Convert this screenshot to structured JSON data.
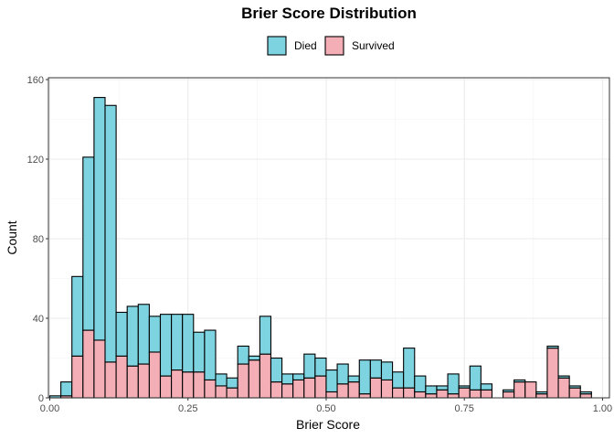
{
  "chart_data": {
    "type": "bar",
    "stacked": true,
    "title": "Brier Score Distribution",
    "xlabel": "Brier Score",
    "ylabel": "Count",
    "xlim": [
      0,
      1
    ],
    "ylim": [
      0,
      160
    ],
    "x_ticks": [
      "0.00",
      "0.25",
      "0.50",
      "0.75",
      "1.00"
    ],
    "y_ticks": [
      "0",
      "40",
      "80",
      "120",
      "160"
    ],
    "grid": true,
    "legend_position": "top",
    "bin_width": 0.02,
    "bin_centers": [
      0.01,
      0.03,
      0.05,
      0.07,
      0.09,
      0.11,
      0.13,
      0.15,
      0.17,
      0.19,
      0.21,
      0.23,
      0.25,
      0.27,
      0.29,
      0.31,
      0.33,
      0.35,
      0.37,
      0.39,
      0.41,
      0.43,
      0.45,
      0.47,
      0.49,
      0.51,
      0.53,
      0.55,
      0.57,
      0.59,
      0.61,
      0.63,
      0.65,
      0.67,
      0.69,
      0.71,
      0.73,
      0.75,
      0.77,
      0.79,
      0.81,
      0.83,
      0.85,
      0.87,
      0.89,
      0.91,
      0.93,
      0.95,
      0.97,
      0.99
    ],
    "series": [
      {
        "name": "Died",
        "color": "#7dd3e0",
        "values": [
          1,
          7,
          40,
          87,
          122,
          129,
          22,
          30,
          30,
          18,
          31,
          28,
          29,
          20,
          25,
          6,
          5,
          9,
          2,
          19,
          12,
          5,
          3,
          12,
          9,
          11,
          10,
          3,
          17,
          9,
          9,
          8,
          20,
          8,
          4,
          2,
          10,
          1,
          12,
          3,
          0,
          1,
          1,
          0,
          1,
          1,
          1,
          1,
          1,
          0
        ]
      },
      {
        "name": "Survived",
        "color": "#f4afb6",
        "values": [
          0,
          1,
          21,
          34,
          29,
          18,
          21,
          16,
          17,
          23,
          11,
          14,
          13,
          13,
          9,
          6,
          5,
          17,
          19,
          22,
          8,
          7,
          9,
          10,
          11,
          3,
          7,
          8,
          2,
          10,
          9,
          5,
          5,
          3,
          2,
          4,
          2,
          5,
          4,
          4,
          0,
          3,
          8,
          8,
          2,
          25,
          10,
          5,
          2,
          0
        ]
      }
    ]
  }
}
